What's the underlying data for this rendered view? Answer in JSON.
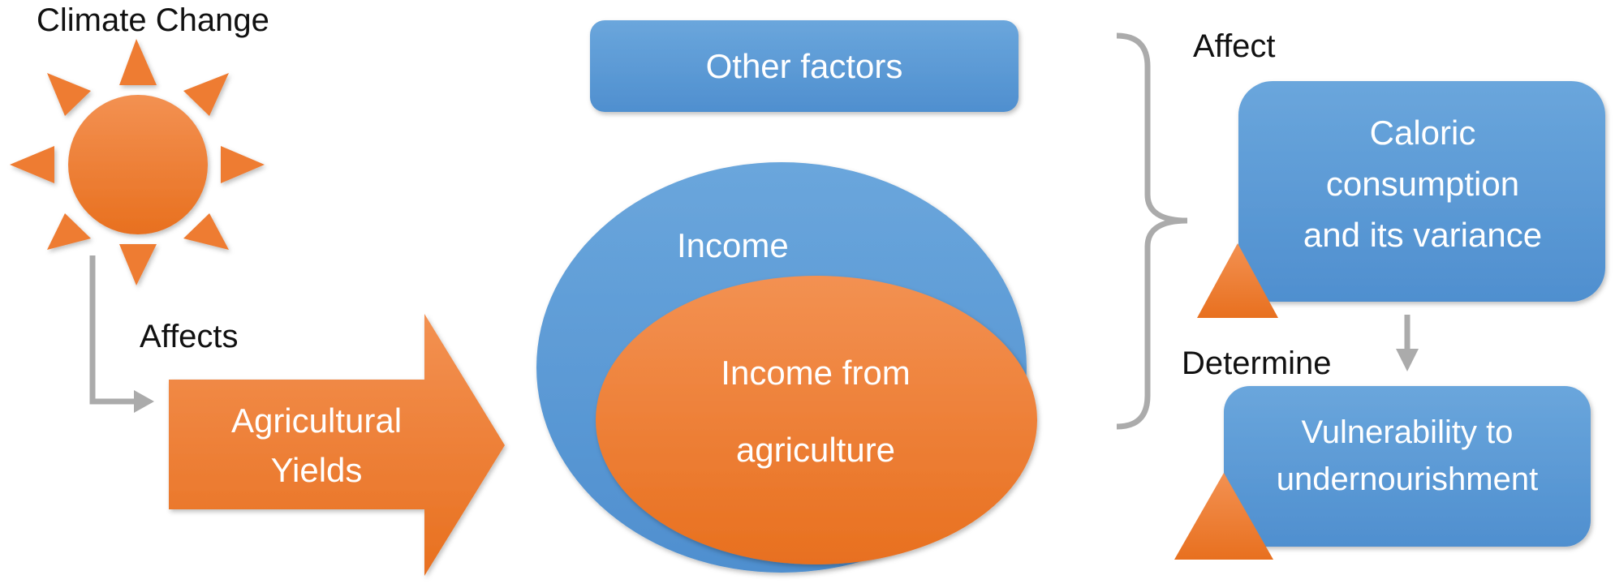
{
  "title": "Climate Change",
  "connectors": {
    "affects": "Affects",
    "affect": "Affect",
    "determine": "Determine"
  },
  "boxes": {
    "agricultural_yields": [
      "Agricultural",
      "Yields"
    ],
    "other_factors": "Other factors",
    "income": "Income",
    "income_from_agriculture": [
      "Income from",
      "agriculture"
    ],
    "caloric_consumption": [
      "Caloric",
      "consumption",
      "and its variance"
    ],
    "vulnerability": [
      "Vulnerability to",
      "undernourishment"
    ]
  },
  "colors": {
    "orange": "#ee7c33",
    "blue": "#5b9bd5",
    "gray_arrow": "#ababab"
  }
}
